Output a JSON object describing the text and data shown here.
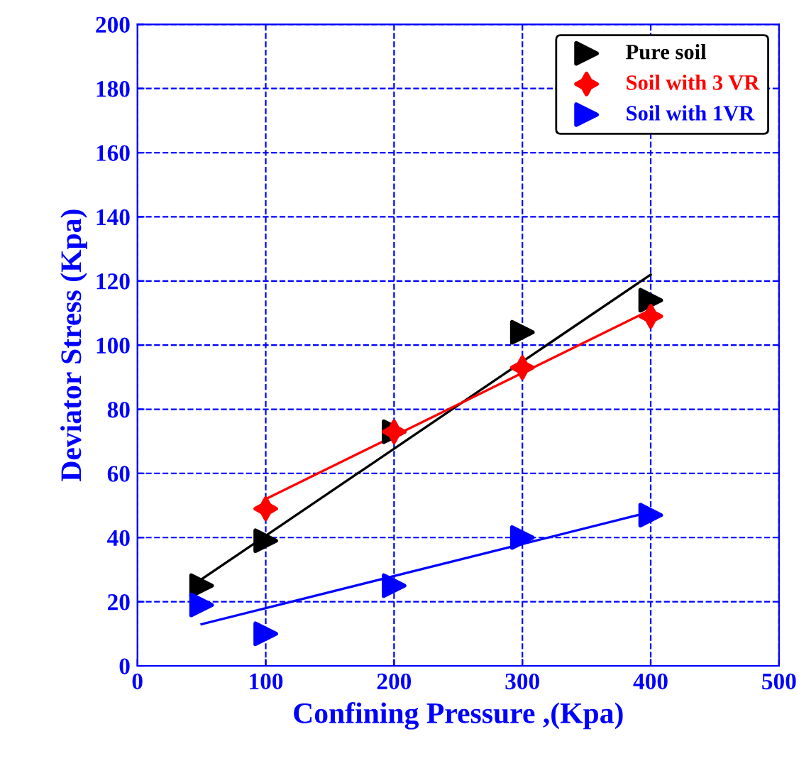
{
  "chart_data": {
    "type": "scatter",
    "xlabel": "Confining Pressure ,(Kpa)",
    "ylabel": "Deviator Stress (Kpa)",
    "xlim": [
      0,
      500
    ],
    "xticks": [
      0,
      100,
      200,
      300,
      400,
      500
    ],
    "ylim": [
      0,
      200
    ],
    "yticks": [
      0,
      20,
      40,
      60,
      80,
      100,
      120,
      140,
      160,
      180,
      200
    ],
    "grid": true,
    "legend": "top right",
    "series": [
      {
        "name": "Pure soil",
        "color": "#000000",
        "marker": "triangle",
        "x": [
          50,
          100,
          200,
          300,
          400
        ],
        "values": [
          25,
          39,
          73,
          104,
          114
        ]
      },
      {
        "name": "Soil with 3 VR",
        "color": "#ff0000",
        "marker": "star",
        "x": [
          100,
          200,
          300,
          400
        ],
        "values": [
          49,
          73,
          93,
          109
        ]
      },
      {
        "name": "Soil with 1VR",
        "color": "#0000ff",
        "marker": "triangle",
        "x": [
          50,
          100,
          200,
          300,
          400
        ],
        "values": [
          19,
          10,
          25,
          40,
          47
        ]
      },
      {
        "type": "line",
        "color": "#000000",
        "marker": "none",
        "x": [
          50,
          400
        ],
        "values": [
          27,
          122
        ]
      },
      {
        "type": "line",
        "color": "#ff0000",
        "marker": "none",
        "x": [
          100,
          400
        ],
        "values": [
          52,
          111
        ]
      },
      {
        "type": "line",
        "color": "#0000ff",
        "marker": "none",
        "x": [
          50,
          400
        ],
        "values": [
          13,
          48
        ]
      }
    ]
  }
}
